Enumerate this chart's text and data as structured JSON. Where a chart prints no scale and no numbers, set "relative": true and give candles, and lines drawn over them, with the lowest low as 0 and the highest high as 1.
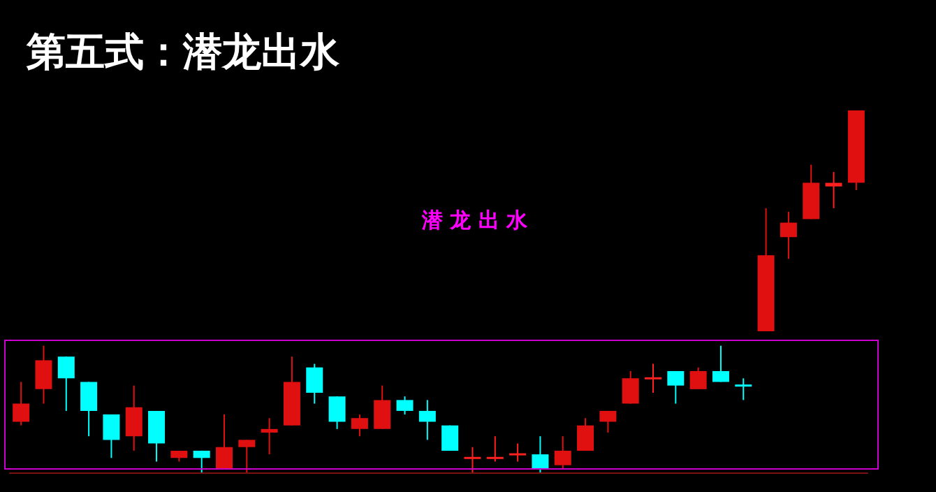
{
  "chart_data": {
    "type": "candlestick",
    "title": "第五式：潜龙出水",
    "annotations": [
      "潜龙出水"
    ],
    "relative": true,
    "categories": [
      null,
      null,
      null,
      null,
      null,
      null,
      null,
      null,
      null,
      null,
      null,
      null,
      null,
      null,
      null,
      null,
      null,
      null,
      null,
      null,
      null,
      null,
      null,
      null,
      null,
      null,
      null,
      null,
      null,
      null,
      null,
      null,
      null,
      null,
      null,
      null,
      null,
      null
    ],
    "ohlc": [
      [
        0.14,
        0.25,
        0.13,
        0.19
      ],
      [
        0.23,
        0.35,
        0.19,
        0.31
      ],
      [
        0.32,
        0.32,
        0.17,
        0.26
      ],
      [
        0.25,
        0.25,
        0.1,
        0.17
      ],
      [
        0.16,
        0.16,
        0.04,
        0.09
      ],
      [
        0.1,
        0.24,
        0.06,
        0.18
      ],
      [
        0.17,
        0.17,
        0.03,
        0.08
      ],
      [
        0.04,
        0.06,
        0.03,
        0.06
      ],
      [
        0.06,
        0.06,
        0,
        0.04
      ],
      [
        0.01,
        0.16,
        0.01,
        0.07
      ],
      [
        0.07,
        0.09,
        0,
        0.09
      ],
      [
        0.11,
        0.15,
        0.05,
        0.12
      ],
      [
        0.13,
        0.32,
        0.13,
        0.25
      ],
      [
        0.29,
        0.3,
        0.19,
        0.22
      ],
      [
        0.21,
        0.21,
        0.12,
        0.14
      ],
      [
        0.12,
        0.16,
        0.1,
        0.15
      ],
      [
        0.12,
        0.24,
        0.12,
        0.2
      ],
      [
        0.2,
        0.21,
        0.16,
        0.17
      ],
      [
        0.17,
        0.2,
        0.09,
        0.14
      ],
      [
        0.13,
        0.13,
        0.06,
        0.06
      ],
      [
        0.04,
        0.07,
        0,
        0.04
      ],
      [
        0.04,
        0.1,
        0.03,
        0.04
      ],
      [
        0.05,
        0.08,
        0.03,
        0.05
      ],
      [
        0.05,
        0.1,
        0,
        0.01
      ],
      [
        0.02,
        0.1,
        0.01,
        0.06
      ],
      [
        0.06,
        0.15,
        0.06,
        0.13
      ],
      [
        0.14,
        0.17,
        0.11,
        0.17
      ],
      [
        0.19,
        0.28,
        0.19,
        0.26
      ],
      [
        0.26,
        0.3,
        0.22,
        0.26
      ],
      [
        0.28,
        0.28,
        0.19,
        0.24
      ],
      [
        0.23,
        0.29,
        0.23,
        0.28
      ],
      [
        0.28,
        0.35,
        0.25,
        0.25
      ],
      [
        0.24,
        0.26,
        0.2,
        0.24
      ],
      [
        0.39,
        0.73,
        0.39,
        0.6
      ],
      [
        0.65,
        0.72,
        0.59,
        0.69
      ],
      [
        0.7,
        0.85,
        0.7,
        0.8
      ],
      [
        0.79,
        0.83,
        0.73,
        0.8
      ],
      [
        0.8,
        1,
        0.78,
        1
      ]
    ],
    "colors": [
      "#e01010",
      "#e01010",
      "#00ffff",
      "#00ffff",
      "#00ffff",
      "#e01010",
      "#00ffff",
      "#e01010",
      "#00ffff",
      "#e01010",
      "#e01010",
      "#e01010",
      "#e01010",
      "#00ffff",
      "#00ffff",
      "#e01010",
      "#e01010",
      "#00ffff",
      "#00ffff",
      "#00ffff",
      "#ff2020",
      "#ff2020",
      "#ff2020",
      "#00ffff",
      "#e01010",
      "#e01010",
      "#e01010",
      "#e01010",
      "#ff2020",
      "#00ffff",
      "#e01010",
      "#00ffff",
      "#00ffff",
      "#e01010",
      "#e01010",
      "#e01010",
      "#ff2020",
      "#e01010"
    ]
  }
}
